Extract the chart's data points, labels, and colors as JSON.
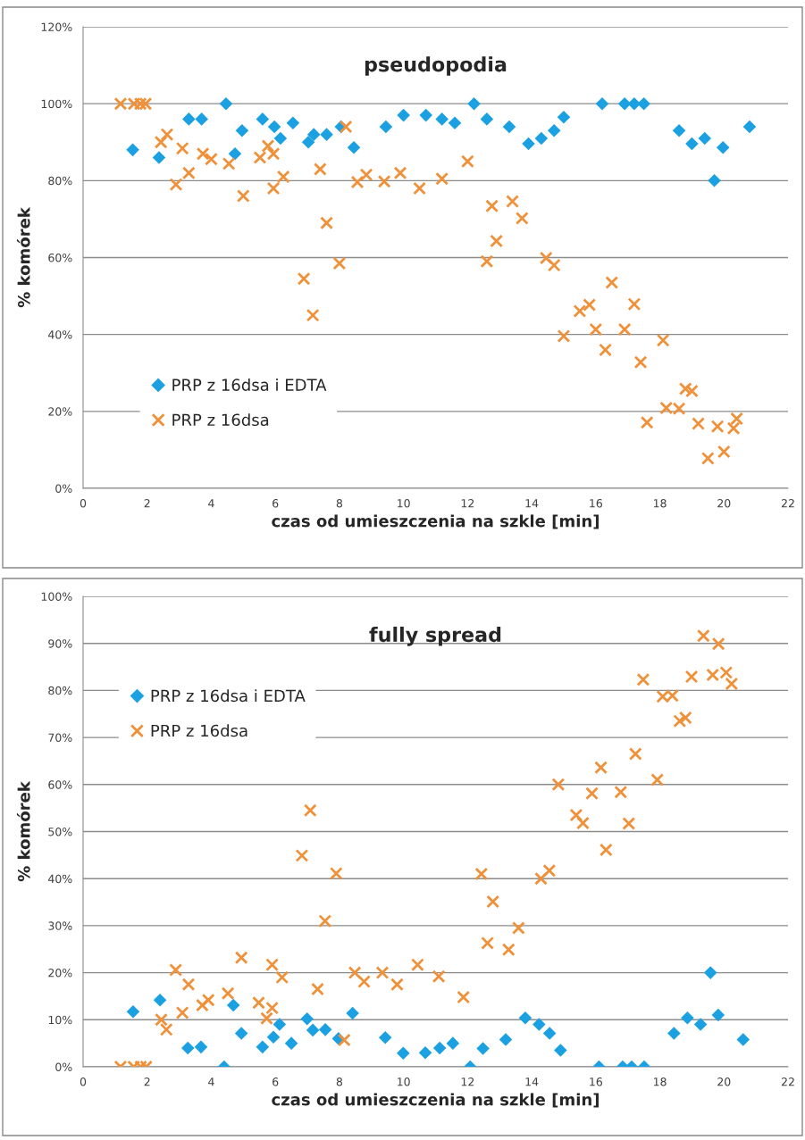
{
  "chart_data": [
    {
      "type": "scatter",
      "title": "pseudopodia",
      "xlabel": "czas od umieszczenia na szkle [min]",
      "ylabel": "% komórek",
      "xlim": [
        0,
        22
      ],
      "xticks": [
        0,
        2,
        4,
        6,
        8,
        10,
        12,
        14,
        16,
        18,
        20,
        22
      ],
      "ylim": [
        0,
        120
      ],
      "yticks": [
        {
          "value": 0,
          "label": "0%"
        },
        {
          "value": 20,
          "label": "20%"
        },
        {
          "value": 40,
          "label": "40%"
        },
        {
          "value": 60,
          "label": "60%"
        },
        {
          "value": 80,
          "label": "80%"
        },
        {
          "value": 100,
          "label": "100%"
        },
        {
          "value": 120,
          "label": "120%"
        }
      ],
      "grid": "y",
      "legend": "bottom left",
      "series": [
        {
          "name": "PRP z 16dsa i EDTA",
          "color": "#1ba1e2",
          "marker": "diamond",
          "x": [
            1.55,
            2.37,
            3.3,
            3.7,
            4.46,
            4.74,
            4.96,
            5.6,
            5.97,
            6.16,
            6.55,
            7.03,
            7.2,
            7.6,
            8.05,
            8.45,
            9.45,
            10.0,
            10.7,
            11.2,
            11.6,
            12.2,
            12.6,
            13.3,
            13.9,
            14.3,
            14.7,
            15.0,
            16.2,
            16.9,
            17.2,
            17.5,
            18.6,
            19.0,
            19.4,
            19.7,
            19.97,
            20.8
          ],
          "values": [
            88,
            86,
            96,
            96,
            100,
            87,
            93,
            96,
            94,
            91,
            95,
            90,
            92,
            92,
            94,
            88.6,
            94,
            97,
            97,
            96,
            95,
            100,
            96,
            94,
            89.6,
            91,
            93,
            96.5,
            100,
            100,
            100,
            100,
            93,
            89.6,
            91,
            80,
            88.6,
            94
          ]
        },
        {
          "name": "PRP z 16dsa",
          "color": "#f0913a",
          "marker": "cross",
          "x": [
            1.17,
            1.59,
            1.79,
            1.95,
            2.43,
            2.62,
            2.9,
            3.1,
            3.3,
            3.74,
            4.0,
            4.55,
            5.0,
            5.52,
            5.77,
            5.94,
            5.94,
            6.25,
            6.89,
            7.17,
            7.4,
            7.6,
            8.0,
            8.2,
            8.56,
            8.84,
            9.4,
            9.9,
            10.5,
            11.2,
            12.0,
            12.6,
            12.76,
            12.9,
            13.4,
            13.7,
            14.45,
            14.7,
            15.0,
            15.5,
            15.8,
            16.0,
            16.3,
            16.5,
            16.9,
            17.2,
            17.4,
            17.6,
            18.1,
            18.2,
            18.6,
            18.8,
            19.0,
            19.2,
            19.5,
            19.8,
            20.0,
            20.3,
            20.4
          ],
          "values": [
            100,
            100,
            100,
            100,
            90,
            92,
            79,
            88.4,
            82,
            87,
            85.6,
            84.4,
            76,
            86,
            89,
            87,
            78,
            81,
            54.5,
            45,
            83,
            69,
            58.5,
            94,
            79.6,
            81.5,
            79.8,
            82,
            78,
            80.5,
            85,
            59,
            73.4,
            64.3,
            74.6,
            70.2,
            59.9,
            58,
            39.6,
            46.1,
            47.7,
            41.3,
            36,
            53.5,
            41.3,
            47.9,
            32.8,
            17.1,
            38.5,
            20.9,
            20.7,
            25.9,
            25.3,
            16.8,
            7.8,
            16.1,
            9.5,
            15.6,
            18.1
          ]
        }
      ]
    },
    {
      "type": "scatter",
      "title": "fully spread",
      "xlabel": "czas od umieszczenia na szkle [min]",
      "ylabel": "% komórek",
      "xlim": [
        0,
        22
      ],
      "xticks": [
        0,
        2,
        4,
        6,
        8,
        10,
        12,
        14,
        16,
        18,
        20,
        22
      ],
      "ylim": [
        0,
        100
      ],
      "yticks": [
        {
          "value": 0,
          "label": "0%"
        },
        {
          "value": 10,
          "label": "10%"
        },
        {
          "value": 20,
          "label": "20%"
        },
        {
          "value": 30,
          "label": "30%"
        },
        {
          "value": 40,
          "label": "40%"
        },
        {
          "value": 50,
          "label": "50%"
        },
        {
          "value": 60,
          "label": "60%"
        },
        {
          "value": 70,
          "label": "70%"
        },
        {
          "value": 80,
          "label": "80%"
        },
        {
          "value": 90,
          "label": "90%"
        },
        {
          "value": 100,
          "label": "100%"
        }
      ],
      "grid": "y",
      "legend": "top left",
      "series": [
        {
          "name": "PRP z 16dsa i EDTA",
          "color": "#1ba1e2",
          "marker": "diamond",
          "x": [
            1.56,
            2.4,
            3.27,
            3.68,
            4.4,
            4.69,
            4.94,
            5.6,
            5.94,
            6.13,
            6.5,
            6.99,
            7.17,
            7.56,
            7.97,
            8.41,
            9.43,
            9.99,
            10.68,
            11.13,
            11.54,
            12.08,
            12.48,
            13.19,
            13.8,
            14.23,
            14.56,
            14.9,
            16.1,
            16.84,
            17.12,
            17.51,
            18.44,
            18.86,
            19.27,
            19.58,
            19.82,
            20.6
          ],
          "values": [
            11.7,
            14.2,
            4.0,
            4.2,
            0,
            13.1,
            7.1,
            4.2,
            6.3,
            9.0,
            5.0,
            10.2,
            7.8,
            7.9,
            6.0,
            11.4,
            6.2,
            2.9,
            3.0,
            4.0,
            5.0,
            0,
            3.9,
            5.8,
            10.4,
            9.0,
            7.1,
            3.5,
            0,
            0,
            0,
            0,
            7.1,
            10.4,
            9.0,
            20.0,
            11.0,
            5.8
          ]
        },
        {
          "name": "PRP z 16dsa",
          "color": "#f0913a",
          "marker": "cross",
          "x": [
            1.17,
            1.58,
            1.8,
            1.97,
            2.44,
            2.6,
            2.89,
            3.1,
            3.29,
            3.72,
            3.91,
            4.52,
            4.94,
            5.48,
            5.73,
            5.9,
            5.9,
            6.21,
            6.83,
            7.09,
            7.32,
            7.55,
            7.9,
            8.15,
            8.48,
            8.77,
            9.34,
            9.8,
            10.44,
            11.1,
            11.87,
            12.43,
            12.62,
            12.79,
            13.28,
            13.59,
            14.29,
            14.55,
            14.83,
            15.39,
            15.6,
            15.88,
            16.16,
            16.32,
            16.78,
            17.03,
            17.24,
            17.48,
            17.92,
            18.09,
            18.39,
            18.62,
            18.8,
            18.99,
            19.36,
            19.65,
            19.83,
            20.07,
            20.24
          ],
          "values": [
            0,
            0,
            0,
            0,
            10.0,
            7.9,
            20.6,
            11.5,
            17.5,
            13.1,
            14.2,
            15.6,
            23.2,
            13.6,
            10.3,
            12.5,
            21.7,
            19.0,
            44.9,
            54.5,
            16.5,
            31.0,
            41.1,
            5.7,
            20.0,
            18.1,
            20.0,
            17.5,
            21.7,
            19.2,
            14.8,
            41.0,
            26.3,
            35.1,
            24.9,
            29.5,
            40.0,
            41.7,
            60.0,
            53.5,
            51.8,
            58.1,
            63.6,
            46.1,
            58.4,
            51.7,
            66.5,
            82.3,
            61.0,
            78.7,
            78.9,
            73.5,
            74.2,
            82.9,
            91.6,
            83.3,
            89.9,
            83.8,
            81.4
          ]
        }
      ]
    }
  ]
}
